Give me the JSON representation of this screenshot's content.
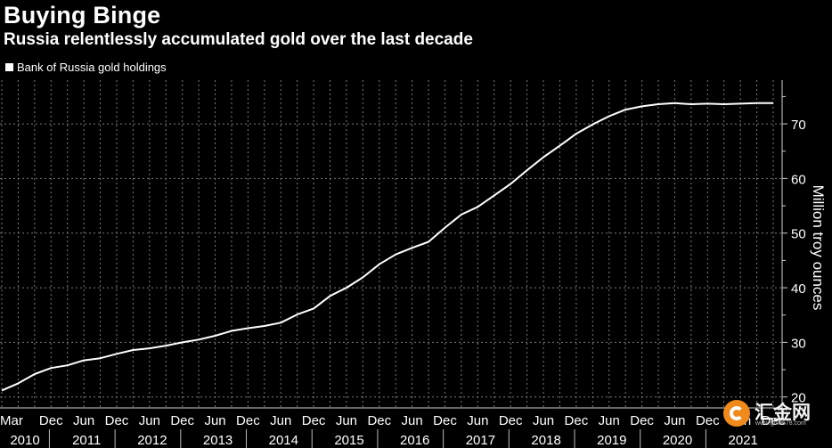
{
  "title": "Buying Binge",
  "subtitle": "Russia relentlessly accumulated gold over the last decade",
  "legend": {
    "label": "Bank of Russia gold holdings"
  },
  "watermark": {
    "text": "汇金网",
    "url": "www.gold678.com"
  },
  "chart_data": {
    "type": "line",
    "title": "Buying Binge",
    "subtitle": "Russia relentlessly accumulated gold over the last decade",
    "ylabel": "Million troy ounces",
    "xlabel": "",
    "ylim": [
      18,
      78
    ],
    "yticks": [
      20,
      30,
      40,
      50,
      60,
      70
    ],
    "xlim": [
      "2010-03",
      "2021-12"
    ],
    "grid": true,
    "legend_position": "top-left",
    "line_color": "#ffffff",
    "x_month_ticks": [
      {
        "x": "2010-03",
        "label": "Mar"
      },
      {
        "x": "2010-12",
        "label": "Dec"
      },
      {
        "x": "2011-06",
        "label": "Jun"
      },
      {
        "x": "2011-12",
        "label": "Dec"
      },
      {
        "x": "2012-06",
        "label": "Jun"
      },
      {
        "x": "2012-12",
        "label": "Dec"
      },
      {
        "x": "2013-06",
        "label": "Jun"
      },
      {
        "x": "2013-12",
        "label": "Dec"
      },
      {
        "x": "2014-06",
        "label": "Jun"
      },
      {
        "x": "2014-12",
        "label": "Dec"
      },
      {
        "x": "2015-06",
        "label": "Jun"
      },
      {
        "x": "2015-12",
        "label": "Dec"
      },
      {
        "x": "2016-06",
        "label": "Jun"
      },
      {
        "x": "2016-12",
        "label": "Dec"
      },
      {
        "x": "2017-06",
        "label": "Jun"
      },
      {
        "x": "2017-12",
        "label": "Dec"
      },
      {
        "x": "2018-06",
        "label": "Jun"
      },
      {
        "x": "2018-12",
        "label": "Dec"
      },
      {
        "x": "2019-06",
        "label": "Jun"
      },
      {
        "x": "2019-12",
        "label": "Dec"
      },
      {
        "x": "2020-06",
        "label": "Jun"
      },
      {
        "x": "2020-12",
        "label": "Dec"
      },
      {
        "x": "2021-06",
        "label": "Jun"
      },
      {
        "x": "2021-12",
        "label": "Dec"
      }
    ],
    "x_year_labels": [
      "2010",
      "2011",
      "2012",
      "2013",
      "2014",
      "2015",
      "2016",
      "2017",
      "2018",
      "2019",
      "2020",
      "2021"
    ],
    "series": [
      {
        "name": "Bank of Russia gold holdings",
        "x": [
          "2010-03",
          "2010-06",
          "2010-09",
          "2010-12",
          "2011-03",
          "2011-06",
          "2011-09",
          "2011-12",
          "2012-03",
          "2012-06",
          "2012-09",
          "2012-12",
          "2013-03",
          "2013-06",
          "2013-09",
          "2013-12",
          "2014-03",
          "2014-06",
          "2014-09",
          "2014-12",
          "2015-03",
          "2015-06",
          "2015-09",
          "2015-12",
          "2016-03",
          "2016-06",
          "2016-09",
          "2016-12",
          "2017-03",
          "2017-06",
          "2017-09",
          "2017-12",
          "2018-03",
          "2018-06",
          "2018-09",
          "2018-12",
          "2019-03",
          "2019-06",
          "2019-09",
          "2019-12",
          "2020-03",
          "2020-06",
          "2020-09",
          "2020-12",
          "2021-03",
          "2021-06",
          "2021-09",
          "2021-12"
        ],
        "values": [
          21.2,
          22.5,
          24.2,
          25.3,
          25.8,
          26.7,
          27.1,
          27.9,
          28.6,
          28.9,
          29.4,
          30.0,
          30.5,
          31.2,
          32.1,
          32.6,
          33.0,
          33.6,
          35.1,
          36.2,
          38.5,
          40.0,
          41.9,
          44.3,
          46.1,
          47.3,
          48.4,
          51.0,
          53.4,
          54.8,
          56.9,
          59.0,
          61.5,
          63.9,
          66.0,
          68.2,
          69.9,
          71.4,
          72.6,
          73.2,
          73.6,
          73.8,
          73.6,
          73.7,
          73.6,
          73.7,
          73.8,
          73.8
        ]
      }
    ]
  }
}
